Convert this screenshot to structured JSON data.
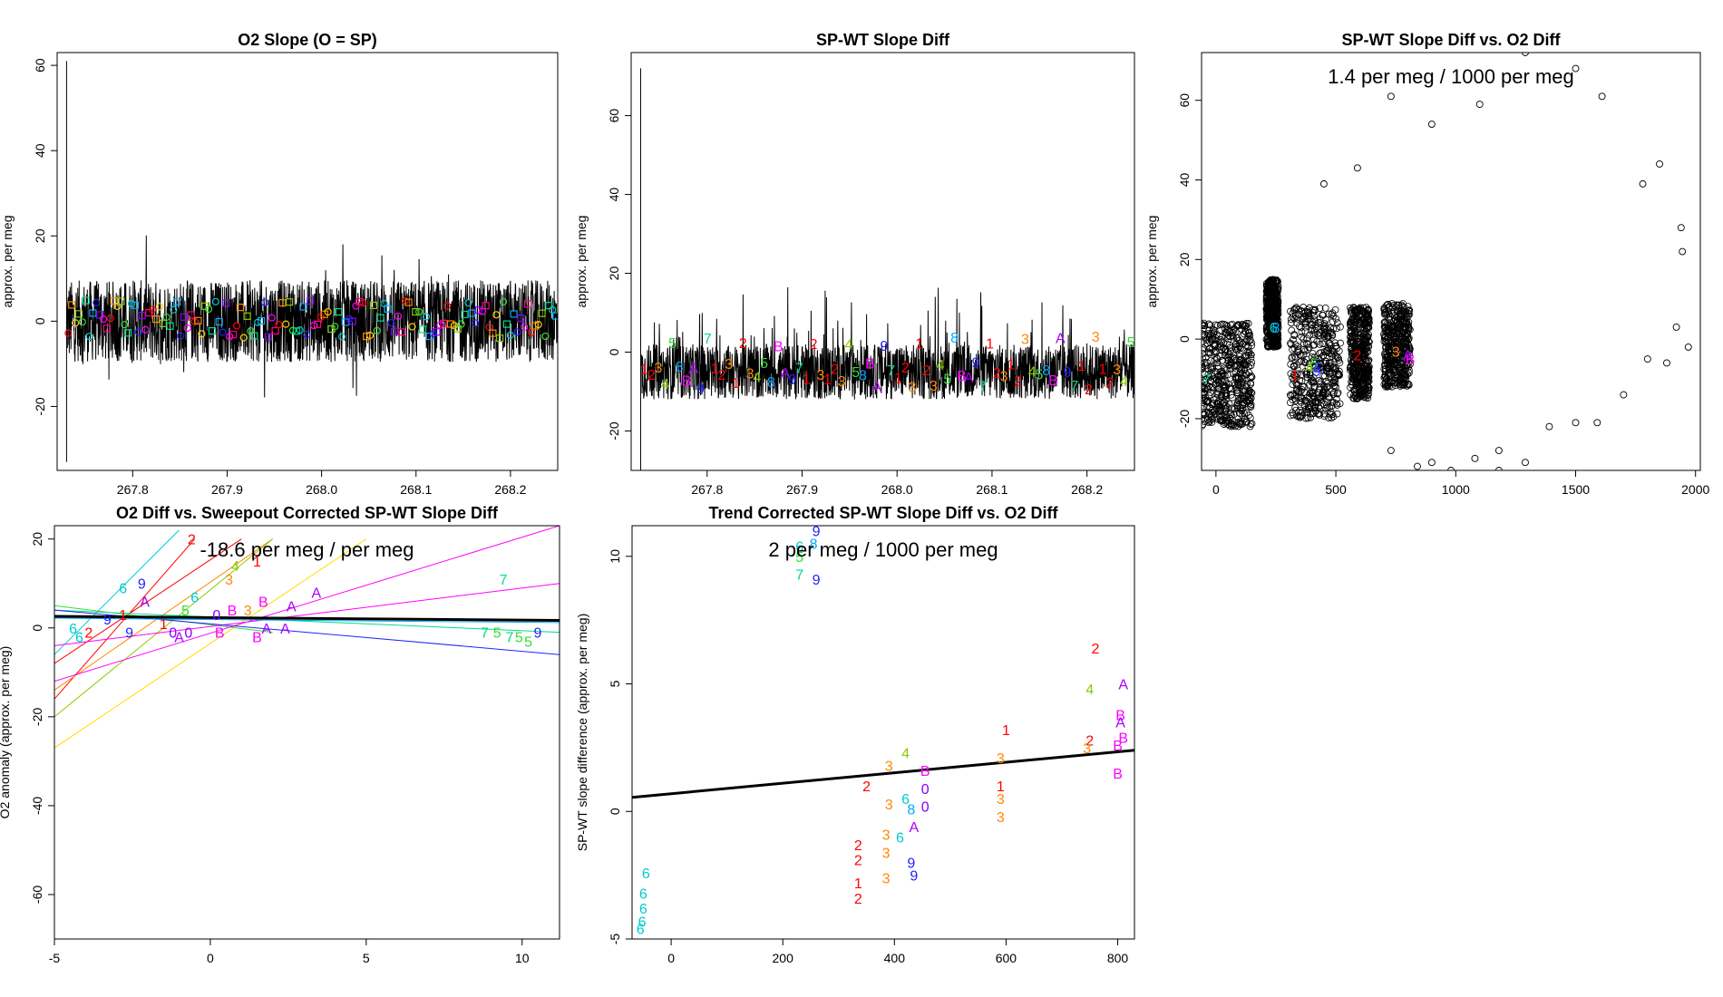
{
  "figure": {
    "layout": "2 rows x 3 columns, sixth cell empty"
  },
  "label_colors": {
    "0": "#8800ff",
    "1": "#ff0000",
    "2": "#ff0000",
    "3": "#ff8800",
    "4": "#88cc00",
    "5": "#33dd33",
    "6": "#00cccc",
    "7": "#00dd88",
    "8": "#00aaff",
    "9": "#2222ff",
    "A": "#aa00ff",
    "B": "#ff00ff",
    "C": "#3344ff"
  },
  "chart_data": [
    {
      "id": "o2_slope",
      "type": "line",
      "title": "O2 Slope (O = SP)",
      "xlabel": "",
      "ylabel": "approx. per meg",
      "xlim": [
        267.72,
        268.25
      ],
      "ylim": [
        -35,
        63
      ],
      "xticks": [
        267.8,
        267.9,
        268.0,
        268.1,
        268.2
      ],
      "xtick_labels": [
        "267.8",
        "267.9",
        "268.0",
        "268.1",
        "268.2"
      ],
      "yticks": [
        -20,
        0,
        20,
        40,
        60
      ],
      "ytick_labels": [
        "-20",
        "0",
        "20",
        "40",
        "60"
      ],
      "series": [
        {
          "name": "O2 slope trace",
          "color": "#000000",
          "x_start": 267.73,
          "x_end": 268.25,
          "center": 0,
          "band": [
            -6,
            6
          ],
          "spike": [
            -33,
            61
          ]
        }
      ],
      "markers": {
        "description": "colored circles and squares along y = 0",
        "range": [
          -4,
          5
        ]
      }
    },
    {
      "id": "spwt_slope_diff",
      "type": "line",
      "title": "SP-WT Slope Diff",
      "xlabel": "",
      "ylabel": "approx. per meg",
      "xlim": [
        267.72,
        268.25
      ],
      "ylim": [
        -30,
        76
      ],
      "xticks": [
        267.8,
        267.9,
        268.0,
        268.1,
        268.2
      ],
      "xtick_labels": [
        "267.8",
        "267.9",
        "268.0",
        "268.1",
        "268.2"
      ],
      "yticks": [
        -20,
        0,
        20,
        40,
        60
      ],
      "ytick_labels": [
        "-20",
        "0",
        "20",
        "40",
        "60"
      ],
      "series": [
        {
          "name": "SP-WT slope diff trace",
          "color": "#000000",
          "x_start": 267.73,
          "x_end": 268.25,
          "center": -5,
          "band": [
            -14,
            4
          ],
          "spike": [
            -33,
            72
          ]
        }
      ],
      "labels": {
        "sequence": [
          "1",
          "2",
          "3",
          "4",
          "5",
          "8",
          "B",
          "A",
          "9",
          "7",
          "1",
          "2",
          "3"
        ],
        "levels": [
          -5,
          -7,
          -3,
          -8,
          3
        ]
      }
    },
    {
      "id": "spwt_vs_o2diff",
      "type": "scatter",
      "title": "SP-WT Slope Diff vs. O2 Diff",
      "annotation": "1.4 per meg / 1000 per meg",
      "xlabel": "",
      "ylabel": "approx. per meg",
      "xlim": [
        -60,
        2020
      ],
      "ylim": [
        -33,
        72
      ],
      "xticks": [
        0,
        500,
        1000,
        1500,
        2000
      ],
      "xtick_labels": [
        "0",
        "500",
        "1000",
        "1500",
        "2000"
      ],
      "yticks": [
        -20,
        0,
        20,
        40,
        60
      ],
      "ytick_labels": [
        "-20",
        "0",
        "20",
        "40",
        "60"
      ],
      "clusters": [
        {
          "x": [
            -60,
            150
          ],
          "y": [
            -22,
            4
          ]
        },
        {
          "x": [
            210,
            260
          ],
          "y": [
            -2,
            15
          ]
        },
        {
          "x": [
            310,
            520
          ],
          "y": [
            -20,
            8
          ]
        },
        {
          "x": [
            560,
            640
          ],
          "y": [
            -15,
            8
          ]
        },
        {
          "x": [
            700,
            810
          ],
          "y": [
            -12,
            9
          ]
        }
      ],
      "outliers": [
        {
          "x": 730,
          "y": 61
        },
        {
          "x": 900,
          "y": 54
        },
        {
          "x": 1100,
          "y": 59
        },
        {
          "x": 1290,
          "y": 72
        },
        {
          "x": 1500,
          "y": 68
        },
        {
          "x": 1610,
          "y": 61
        },
        {
          "x": 590,
          "y": 43
        },
        {
          "x": 450,
          "y": 39
        },
        {
          "x": 1780,
          "y": 39
        },
        {
          "x": 1850,
          "y": 44
        },
        {
          "x": 1940,
          "y": 28
        },
        {
          "x": 1945,
          "y": 22
        },
        {
          "x": 1920,
          "y": 3
        },
        {
          "x": 1970,
          "y": -2
        },
        {
          "x": 1800,
          "y": -5
        },
        {
          "x": 1880,
          "y": -6
        },
        {
          "x": 1700,
          "y": -14
        },
        {
          "x": 1590,
          "y": -21
        },
        {
          "x": 1500,
          "y": -21
        },
        {
          "x": 1390,
          "y": -22
        },
        {
          "x": 1290,
          "y": -31
        },
        {
          "x": 1180,
          "y": -33
        },
        {
          "x": 1080,
          "y": -30
        },
        {
          "x": 980,
          "y": -33
        },
        {
          "x": 900,
          "y": -31
        },
        {
          "x": 840,
          "y": -32
        },
        {
          "x": 730,
          "y": -28
        },
        {
          "x": 1180,
          "y": -28
        }
      ],
      "labels": [
        {
          "t": "7",
          "x": -40,
          "y": -10
        },
        {
          "t": "6",
          "x": 240,
          "y": 3
        },
        {
          "t": "8",
          "x": 250,
          "y": 3
        },
        {
          "t": "1",
          "x": 330,
          "y": -9
        },
        {
          "t": "4",
          "x": 390,
          "y": -7
        },
        {
          "t": "5",
          "x": 410,
          "y": -6
        },
        {
          "t": "9",
          "x": 420,
          "y": -8
        },
        {
          "t": "C",
          "x": 430,
          "y": -7
        },
        {
          "t": "2",
          "x": 590,
          "y": -4
        },
        {
          "t": "3",
          "x": 750,
          "y": -3
        },
        {
          "t": "A",
          "x": 800,
          "y": -4
        },
        {
          "t": "B",
          "x": 810,
          "y": -5
        }
      ]
    },
    {
      "id": "o2diff_vs_sweepout",
      "type": "scatter",
      "title": "O2 Diff vs. Sweepout Corrected SP-WT Slope Diff",
      "annotation": "-18.6 per meg / per meg",
      "xlabel": "",
      "ylabel": "O2 anomaly (approx. per meg)",
      "xlim": [
        -5,
        11.2
      ],
      "ylim": [
        -70,
        23
      ],
      "xticks": [
        -5,
        0,
        5,
        10
      ],
      "xtick_labels": [
        "-5",
        "0",
        "5",
        "10"
      ],
      "yticks": [
        -60,
        -40,
        -20,
        0,
        20
      ],
      "ytick_labels": [
        "-60",
        "-40",
        "-20",
        "0",
        "20"
      ],
      "fit_line": {
        "color": "#000000",
        "x": [
          -5,
          11.2
        ],
        "y": [
          2.6,
          1.7
        ]
      },
      "colored_lines": [
        {
          "color": "#ff0000",
          "x": [
            -5,
            1
          ],
          "y": [
            -8,
            20
          ]
        },
        {
          "color": "#ff0000",
          "x": [
            -5,
            -0.5
          ],
          "y": [
            -16,
            20
          ]
        },
        {
          "color": "#ff8800",
          "x": [
            -5,
            2
          ],
          "y": [
            -14,
            20
          ]
        },
        {
          "color": "#ffdd00",
          "x": [
            -5,
            5
          ],
          "y": [
            -27,
            20
          ]
        },
        {
          "color": "#88cc00",
          "x": [
            -5,
            2
          ],
          "y": [
            -20,
            20
          ]
        },
        {
          "color": "#33dd33",
          "x": [
            -5,
            2
          ],
          "y": [
            5,
            -1
          ]
        },
        {
          "color": "#00cccc",
          "x": [
            -5,
            -1
          ],
          "y": [
            -6,
            22
          ]
        },
        {
          "color": "#00dd88",
          "x": [
            -5,
            11.2
          ],
          "y": [
            4,
            -1
          ]
        },
        {
          "color": "#ff00ff",
          "x": [
            -5,
            11.2
          ],
          "y": [
            -12,
            23
          ]
        },
        {
          "color": "#ff00ff",
          "x": [
            -5,
            11.2
          ],
          "y": [
            -4,
            10
          ]
        },
        {
          "color": "#2222ff",
          "x": [
            -5,
            11.2
          ],
          "y": [
            4,
            -6
          ]
        },
        {
          "color": "#00aaff",
          "x": [
            -5,
            11.2
          ],
          "y": [
            2.2,
            1.2
          ]
        }
      ],
      "labels": [
        {
          "t": "2",
          "x": -0.6,
          "y": 20
        },
        {
          "t": "1",
          "x": 1.5,
          "y": 15
        },
        {
          "t": "4",
          "x": 0.8,
          "y": 14
        },
        {
          "t": "3",
          "x": 0.6,
          "y": 11
        },
        {
          "t": "6",
          "x": -2.8,
          "y": 9
        },
        {
          "t": "9",
          "x": -2.2,
          "y": 10
        },
        {
          "t": "A",
          "x": -2.1,
          "y": 6
        },
        {
          "t": "6",
          "x": -0.5,
          "y": 7
        },
        {
          "t": "5",
          "x": -0.8,
          "y": 4
        },
        {
          "t": "7",
          "x": 9.4,
          "y": 11
        },
        {
          "t": "A",
          "x": 3.4,
          "y": 8
        },
        {
          "t": "B",
          "x": 1.7,
          "y": 6
        },
        {
          "t": "A",
          "x": 2.6,
          "y": 5
        },
        {
          "t": "0",
          "x": 0.2,
          "y": 3
        },
        {
          "t": "B",
          "x": 0.7,
          "y": 4
        },
        {
          "t": "3",
          "x": 1.2,
          "y": 4
        },
        {
          "t": "1",
          "x": -2.8,
          "y": 3
        },
        {
          "t": "9",
          "x": -3.3,
          "y": 2
        },
        {
          "t": "1",
          "x": -1.5,
          "y": 1
        },
        {
          "t": "2",
          "x": -3.9,
          "y": -1
        },
        {
          "t": "9",
          "x": -2.6,
          "y": -1
        },
        {
          "t": "0",
          "x": -1.2,
          "y": -1
        },
        {
          "t": "A",
          "x": -1,
          "y": -2
        },
        {
          "t": "0",
          "x": -0.7,
          "y": -1
        },
        {
          "t": "B",
          "x": 0.3,
          "y": -1
        },
        {
          "t": "B",
          "x": 1.5,
          "y": -2
        },
        {
          "t": "A",
          "x": 1.8,
          "y": 0
        },
        {
          "t": "A",
          "x": 2.4,
          "y": 0
        },
        {
          "t": "6",
          "x": -4.4,
          "y": 0
        },
        {
          "t": "6",
          "x": -4.2,
          "y": -2
        },
        {
          "t": "5",
          "x": 9.2,
          "y": -1
        },
        {
          "t": "7",
          "x": 8.8,
          "y": -1
        },
        {
          "t": "5",
          "x": 9.9,
          "y": -2
        },
        {
          "t": "9",
          "x": 10.5,
          "y": -1
        },
        {
          "t": "5",
          "x": 10.2,
          "y": -3
        },
        {
          "t": "7",
          "x": 9.6,
          "y": -2
        }
      ]
    },
    {
      "id": "trend_corrected",
      "type": "scatter",
      "title": "Trend Corrected SP-WT Slope Diff vs. O2 Diff",
      "annotation": "2 per meg / 1000 per meg",
      "xlabel": "",
      "ylabel": "SP-WT slope difference (approx. per meg)",
      "xlim": [
        -70,
        830
      ],
      "ylim": [
        -5,
        11.2
      ],
      "xticks": [
        0,
        200,
        400,
        600,
        800
      ],
      "xtick_labels": [
        "0",
        "200",
        "400",
        "600",
        "800"
      ],
      "yticks": [
        -5,
        0,
        5,
        10
      ],
      "ytick_labels": [
        "-5",
        "0",
        "5",
        "10"
      ],
      "fit_line": {
        "color": "#000000",
        "x": [
          -70,
          830
        ],
        "y": [
          0.55,
          2.4
        ]
      },
      "labels": [
        {
          "t": "9",
          "x": 260,
          "y": 11
        },
        {
          "t": "8",
          "x": 255,
          "y": 10.5
        },
        {
          "t": "6",
          "x": 230,
          "y": 10.4
        },
        {
          "t": "5",
          "x": 230,
          "y": 10
        },
        {
          "t": "7",
          "x": 230,
          "y": 9.3
        },
        {
          "t": "9",
          "x": 260,
          "y": 9.1
        },
        {
          "t": "2",
          "x": 760,
          "y": 6.4
        },
        {
          "t": "A",
          "x": 810,
          "y": 5
        },
        {
          "t": "4",
          "x": 750,
          "y": 4.8
        },
        {
          "t": "B",
          "x": 805,
          "y": 3.8
        },
        {
          "t": "A",
          "x": 805,
          "y": 3.5
        },
        {
          "t": "1",
          "x": 600,
          "y": 3.2
        },
        {
          "t": "2",
          "x": 750,
          "y": 2.8
        },
        {
          "t": "3",
          "x": 745,
          "y": 2.5
        },
        {
          "t": "B",
          "x": 810,
          "y": 2.9
        },
        {
          "t": "B",
          "x": 800,
          "y": 2.6
        },
        {
          "t": "3",
          "x": 590,
          "y": 2.1
        },
        {
          "t": "4",
          "x": 420,
          "y": 2.3
        },
        {
          "t": "3",
          "x": 390,
          "y": 1.8
        },
        {
          "t": "B",
          "x": 455,
          "y": 1.6
        },
        {
          "t": "B",
          "x": 800,
          "y": 1.5
        },
        {
          "t": "2",
          "x": 350,
          "y": 1
        },
        {
          "t": "0",
          "x": 455,
          "y": 0.9
        },
        {
          "t": "1",
          "x": 590,
          "y": 1
        },
        {
          "t": "3",
          "x": 590,
          "y": 0.5
        },
        {
          "t": "6",
          "x": 420,
          "y": 0.5
        },
        {
          "t": "0",
          "x": 455,
          "y": 0.2
        },
        {
          "t": "3",
          "x": 390,
          "y": 0.3
        },
        {
          "t": "8",
          "x": 430,
          "y": 0.1
        },
        {
          "t": "3",
          "x": 590,
          "y": -0.2
        },
        {
          "t": "A",
          "x": 435,
          "y": -0.6
        },
        {
          "t": "2",
          "x": 335,
          "y": -1.3
        },
        {
          "t": "3",
          "x": 385,
          "y": -0.9
        },
        {
          "t": "6",
          "x": 410,
          "y": -1
        },
        {
          "t": "2",
          "x": 335,
          "y": -1.9
        },
        {
          "t": "3",
          "x": 385,
          "y": -1.6
        },
        {
          "t": "9",
          "x": 430,
          "y": -2
        },
        {
          "t": "1",
          "x": 335,
          "y": -2.8
        },
        {
          "t": "2",
          "x": 335,
          "y": -3.4
        },
        {
          "t": "9",
          "x": 435,
          "y": -2.5
        },
        {
          "t": "3",
          "x": 385,
          "y": -2.6
        },
        {
          "t": "6",
          "x": -45,
          "y": -2.4
        },
        {
          "t": "6",
          "x": -50,
          "y": -3.2
        },
        {
          "t": "6",
          "x": -50,
          "y": -3.8
        },
        {
          "t": "6",
          "x": -52,
          "y": -4.3
        },
        {
          "t": "6",
          "x": -55,
          "y": -4.6
        }
      ]
    }
  ]
}
